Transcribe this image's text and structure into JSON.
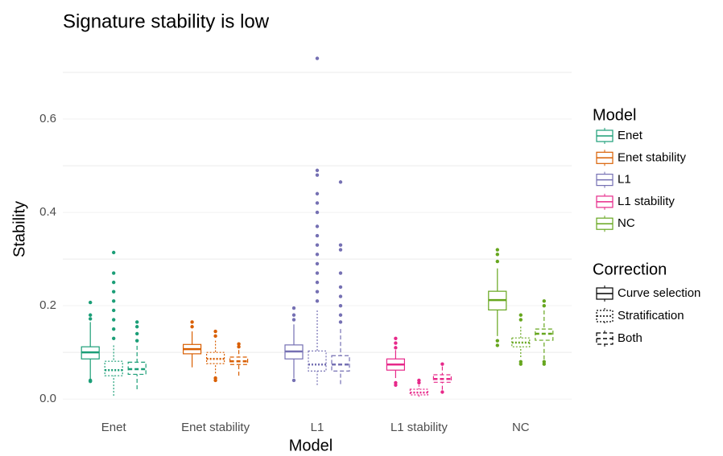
{
  "chart_data": {
    "type": "box",
    "title": "Signature stability is low",
    "x_label": "Model",
    "y_label": "Stability",
    "categories": [
      "Enet",
      "Enet stability",
      "L1",
      "L1 stability",
      "NC"
    ],
    "category_colors": [
      "#1b9e77",
      "#d95f02",
      "#7570b3",
      "#e7298a",
      "#66a61e"
    ],
    "ylim": [
      -0.01,
      0.75
    ],
    "yticks": [
      {
        "value": 0,
        "label": "0.0"
      },
      0.2,
      0.4,
      0.6
    ],
    "yminor": [
      0.1,
      0.3,
      0.5,
      0.7
    ],
    "grid": true,
    "color_legend_title": "Model",
    "linetype_legend_title": "Correction",
    "series": [
      {
        "name": "Curve selection",
        "linetype": "solid",
        "boxes": [
          {
            "low": 0.043,
            "q1": 0.086,
            "median": 0.1,
            "q3": 0.112,
            "high": 0.165,
            "outliers": [
              0.207,
              0.18,
              0.172,
              0.04,
              0.038
            ]
          },
          {
            "low": 0.068,
            "q1": 0.097,
            "median": 0.107,
            "q3": 0.117,
            "high": 0.145,
            "outliers": [
              0.165,
              0.155
            ]
          },
          {
            "low": 0.045,
            "q1": 0.086,
            "median": 0.102,
            "q3": 0.116,
            "high": 0.16,
            "outliers": [
              0.195,
              0.18,
              0.17,
              0.04
            ]
          },
          {
            "low": 0.045,
            "q1": 0.062,
            "median": 0.074,
            "q3": 0.086,
            "high": 0.105,
            "outliers": [
              0.13,
              0.12,
              0.11,
              0.035,
              0.03
            ]
          },
          {
            "low": 0.135,
            "q1": 0.191,
            "median": 0.212,
            "q3": 0.231,
            "high": 0.28,
            "outliers": [
              0.32,
              0.31,
              0.295,
              0.125,
              0.115
            ]
          }
        ]
      },
      {
        "name": "Stratification",
        "linetype": "dotted",
        "boxes": [
          {
            "low": 0.007,
            "q1": 0.05,
            "median": 0.062,
            "q3": 0.081,
            "high": 0.115,
            "outliers": [
              0.314,
              0.27,
              0.25,
              0.23,
              0.21,
              0.19,
              0.17,
              0.15,
              0.13
            ]
          },
          {
            "low": 0.055,
            "q1": 0.076,
            "median": 0.086,
            "q3": 0.1,
            "high": 0.125,
            "outliers": [
              0.145,
              0.135,
              0.045,
              0.04
            ]
          },
          {
            "low": 0.03,
            "q1": 0.06,
            "median": 0.074,
            "q3": 0.103,
            "high": 0.19,
            "outliers": [
              0.73,
              0.49,
              0.48,
              0.44,
              0.42,
              0.4,
              0.37,
              0.35,
              0.33,
              0.31,
              0.29,
              0.27,
              0.25,
              0.23,
              0.21
            ]
          },
          {
            "low": 0.005,
            "q1": 0.009,
            "median": 0.014,
            "q3": 0.021,
            "high": 0.03,
            "outliers": [
              0.04,
              0.035
            ]
          },
          {
            "low": 0.09,
            "q1": 0.112,
            "median": 0.121,
            "q3": 0.131,
            "high": 0.155,
            "outliers": [
              0.18,
              0.17,
              0.08,
              0.075
            ]
          }
        ]
      },
      {
        "name": "Both",
        "linetype": "dashed",
        "boxes": [
          {
            "low": 0.021,
            "q1": 0.053,
            "median": 0.064,
            "q3": 0.079,
            "high": 0.114,
            "outliers": [
              0.165,
              0.155,
              0.14,
              0.125
            ]
          },
          {
            "low": 0.05,
            "q1": 0.074,
            "median": 0.081,
            "q3": 0.09,
            "high": 0.105,
            "outliers": [
              0.118,
              0.112
            ]
          },
          {
            "low": 0.032,
            "q1": 0.06,
            "median": 0.074,
            "q3": 0.093,
            "high": 0.15,
            "outliers": [
              0.465,
              0.33,
              0.32,
              0.27,
              0.24,
              0.22,
              0.2,
              0.18,
              0.165
            ]
          },
          {
            "low": 0.02,
            "q1": 0.036,
            "median": 0.043,
            "q3": 0.052,
            "high": 0.07,
            "outliers": [
              0.075,
              0.015
            ]
          },
          {
            "low": 0.085,
            "q1": 0.126,
            "median": 0.14,
            "q3": 0.15,
            "high": 0.19,
            "outliers": [
              0.21,
              0.2,
              0.08,
              0.075
            ]
          }
        ]
      }
    ]
  }
}
